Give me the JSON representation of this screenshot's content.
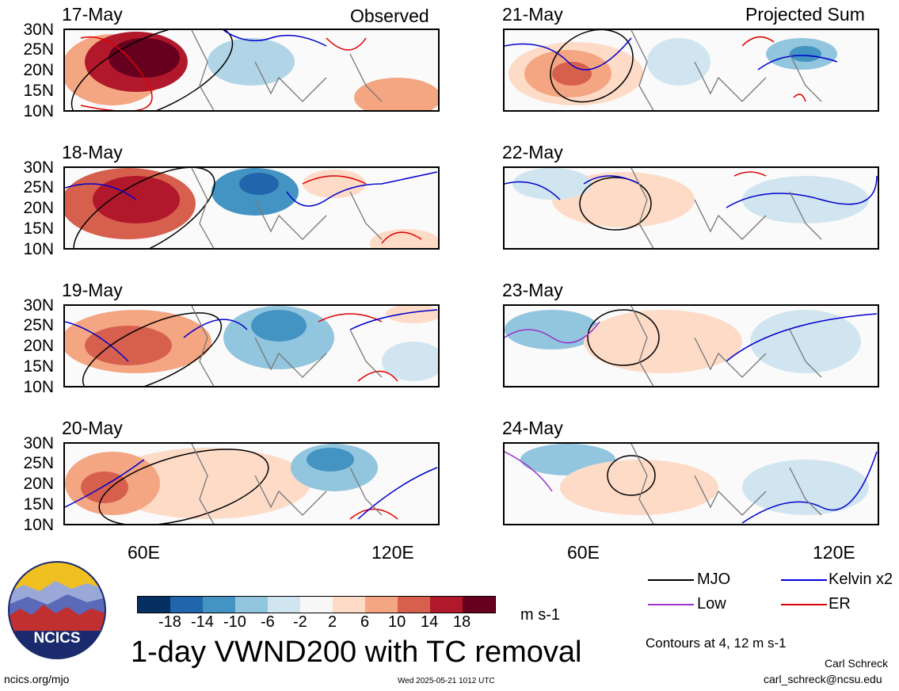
{
  "panels": [
    {
      "date": "17-May",
      "header": "Observed"
    },
    {
      "date": "21-May",
      "header": "Projected Sum"
    },
    {
      "date": "18-May",
      "header": ""
    },
    {
      "date": "22-May",
      "header": ""
    },
    {
      "date": "19-May",
      "header": ""
    },
    {
      "date": "23-May",
      "header": ""
    },
    {
      "date": "20-May",
      "header": ""
    },
    {
      "date": "24-May",
      "header": ""
    }
  ],
  "lat_labels": [
    "30N",
    "25N",
    "20N",
    "15N",
    "10N"
  ],
  "lon_labels": [
    "60E",
    "120E"
  ],
  "colorbar": {
    "colors": [
      "#053061",
      "#2166ac",
      "#4393c3",
      "#92c5de",
      "#d1e5f0",
      "#f7f7f7",
      "#fddbc7",
      "#f4a582",
      "#d6604d",
      "#b2182b",
      "#67001f"
    ],
    "ticks": [
      "-18",
      "-14",
      "-10",
      "-6",
      "-2",
      "2",
      "6",
      "10",
      "14",
      "18"
    ],
    "units": "m s-1"
  },
  "title": "1-day VWND200 with TC removal",
  "legend": {
    "mjo": {
      "label": "MJO",
      "color": "#000000"
    },
    "kelvin": {
      "label": "Kelvin x2",
      "color": "#0000dd"
    },
    "low": {
      "label": "Low",
      "color": "#9933cc"
    },
    "er": {
      "label": "ER",
      "color": "#dd0000"
    }
  },
  "contours_note": "Contours at 4, 12 m s-1",
  "author": "Carl Schreck",
  "email": "carl_schreck@ncsu.edu",
  "site": "ncics.org/mjo",
  "timestamp": "Wed 2025-05-21 1012 UTC",
  "logo_text": "NCICS"
}
